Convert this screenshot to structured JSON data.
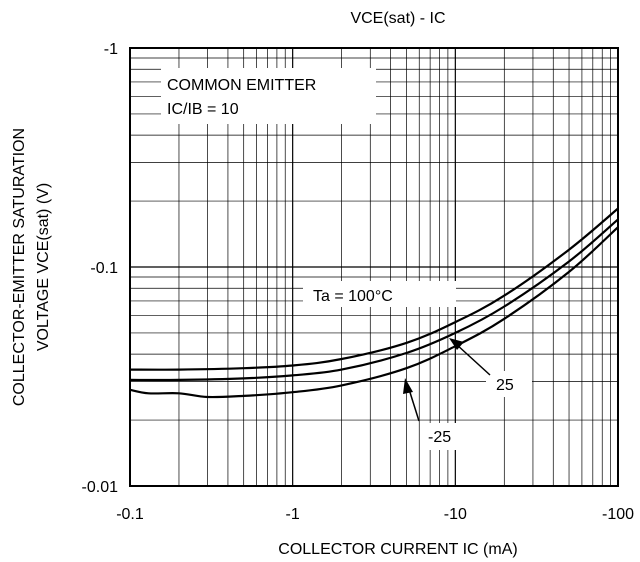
{
  "chart_data": {
    "type": "line",
    "title": "VCE(sat) - IC",
    "xlabel": "COLLECTOR CURRENT IC (mA)",
    "ylabel_line1": "COLLECTOR-EMITTER SATURATION",
    "ylabel_line2": "VOLTAGE  VCE(sat)  (V)",
    "x_scale": "log",
    "y_scale": "log",
    "xlim": [
      0.1,
      100
    ],
    "ylim": [
      0.01,
      1
    ],
    "x_ticks": [
      {
        "value": 0.1,
        "label": "-0.1"
      },
      {
        "value": 1,
        "label": "-1"
      },
      {
        "value": 10,
        "label": "-10"
      },
      {
        "value": 100,
        "label": "-100"
      }
    ],
    "y_ticks": [
      {
        "value": 0.01,
        "label": "-0.01"
      },
      {
        "value": 0.1,
        "label": "-0.1"
      },
      {
        "value": 1,
        "label": "-1"
      }
    ],
    "grid": true,
    "annotations": {
      "condition_line1": "COMMON EMITTER",
      "condition_line2": "IC/IB = 10",
      "label_100": "Ta = 100°C",
      "label_25": "25",
      "label_m25": "-25"
    },
    "series": [
      {
        "name": "Ta = 100°C",
        "x": [
          0.1,
          0.2,
          0.5,
          1,
          2,
          5,
          10,
          20,
          50,
          100
        ],
        "y": [
          0.034,
          0.034,
          0.0345,
          0.0355,
          0.038,
          0.045,
          0.056,
          0.074,
          0.12,
          0.185
        ]
      },
      {
        "name": "25",
        "x": [
          0.1,
          0.2,
          0.5,
          1,
          2,
          5,
          10,
          20,
          50,
          100
        ],
        "y": [
          0.0305,
          0.0305,
          0.031,
          0.032,
          0.034,
          0.0405,
          0.05,
          0.066,
          0.106,
          0.165
        ]
      },
      {
        "name": "-25",
        "x": [
          0.1,
          0.13,
          0.2,
          0.3,
          0.5,
          1,
          2,
          5,
          10,
          20,
          50,
          100
        ],
        "y": [
          0.0275,
          0.0265,
          0.0265,
          0.0255,
          0.0258,
          0.0268,
          0.0288,
          0.0345,
          0.0435,
          0.058,
          0.095,
          0.152
        ]
      }
    ]
  }
}
